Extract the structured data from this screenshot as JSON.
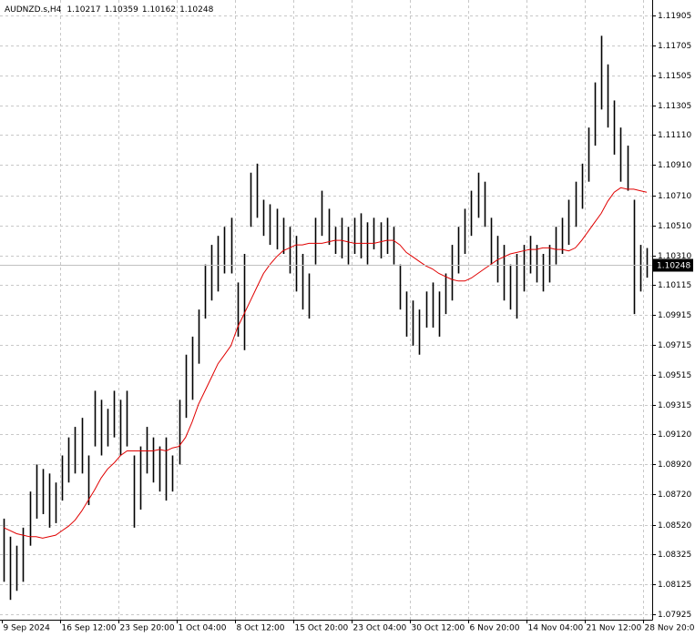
{
  "chart_data": {
    "type": "ohlc",
    "title": "AUDNZD.s,H4",
    "last_open": 1.10217,
    "last_close": 1.10248,
    "ylim": [
      1.07888,
      1.12008
    ],
    "yticks": [
      1.11905,
      1.11705,
      1.11505,
      1.11305,
      {
        "value": 1.1111,
        "label": "1.11110"
      },
      {
        "value": 1.1091,
        "label": "1.10910"
      },
      {
        "value": 1.1071,
        "label": "1.10710"
      },
      {
        "value": 1.1051,
        "label": "1.10510"
      },
      {
        "value": 1.1031,
        "label": "1.10310"
      },
      1.10115,
      1.09915,
      1.09715,
      1.09515,
      1.09315,
      {
        "value": 1.0912,
        "label": "1.09120"
      },
      {
        "value": 1.0892,
        "label": "1.08920"
      },
      {
        "value": 1.0872,
        "label": "1.08720"
      },
      {
        "value": 1.0852,
        "label": "1.08520"
      },
      1.08325,
      1.08125,
      1.07925
    ],
    "x_labels": [
      "9 Sep 2024",
      "16 Sep 12:00",
      "23 Sep 20:00",
      "1 Oct 04:00",
      "8 Oct 12:00",
      "15 Oct 20:00",
      "23 Oct 04:00",
      "30 Oct 12:00",
      "6 Nov 20:00",
      "14 Nov 04:00",
      "21 Nov 12:00",
      "28 Nov 20:00"
    ],
    "grid": true,
    "bar_color": "#000000",
    "ma_color": "#e00000",
    "price_line_color": "#c0c0c0",
    "high": [
      1.0856,
      1.0844,
      1.0838,
      1.085,
      1.0874,
      1.0892,
      1.0889,
      1.0886,
      1.088,
      1.0898,
      1.091,
      1.0917,
      1.0923,
      1.0898,
      1.0941,
      1.0935,
      1.0929,
      1.0941,
      1.0935,
      1.0941,
      1.0898,
      1.0904,
      1.0917,
      1.091,
      1.0904,
      1.091,
      1.0898,
      1.0935,
      1.0965,
      1.0977,
      1.0995,
      1.1025,
      1.1038,
      1.1044,
      1.105,
      1.1056,
      1.1013,
      1.1032,
      1.1086,
      1.1092,
      1.1068,
      1.1065,
      1.1062,
      1.1056,
      1.105,
      1.1044,
      1.1032,
      1.1019,
      1.1056,
      1.1074,
      1.1062,
      1.105,
      1.1056,
      1.105,
      1.1056,
      1.1059,
      1.1053,
      1.1056,
      1.1053,
      1.1056,
      1.105,
      1.1025,
      1.1007,
      1.1001,
      1.0995,
      1.1007,
      1.1013,
      1.1007,
      1.1019,
      1.1038,
      1.105,
      1.1062,
      1.1074,
      1.1086,
      1.108,
      1.1056,
      1.1044,
      1.1038,
      1.1025,
      1.1032,
      1.1038,
      1.1044,
      1.1038,
      1.1032,
      1.1038,
      1.105,
      1.1056,
      1.1068,
      1.108,
      1.1092,
      1.1116,
      1.1146,
      1.1177,
      1.1158,
      1.1134,
      1.1116,
      1.1104,
      1.1068,
      1.1038,
      1.10359
    ],
    "low": [
      1.0814,
      1.0802,
      1.0808,
      1.0814,
      1.0838,
      1.0856,
      1.0859,
      1.085,
      1.0853,
      1.0868,
      1.088,
      1.0886,
      1.0886,
      1.0865,
      1.0904,
      1.0898,
      1.0904,
      1.091,
      1.0898,
      1.0904,
      1.085,
      1.0862,
      1.0886,
      1.088,
      1.0874,
      1.0868,
      1.0874,
      1.0892,
      1.0923,
      1.0935,
      1.0959,
      1.0989,
      1.1001,
      1.1007,
      1.1019,
      1.1019,
      1.0977,
      1.0968,
      1.105,
      1.1056,
      1.1044,
      1.1038,
      1.1035,
      1.1032,
      1.1019,
      1.1007,
      1.0995,
      1.0989,
      1.1025,
      1.1044,
      1.1038,
      1.1032,
      1.1029,
      1.1025,
      1.1032,
      1.1029,
      1.1025,
      1.1035,
      1.1029,
      1.1032,
      1.1025,
      1.0995,
      1.0977,
      1.0971,
      1.0965,
      1.0983,
      1.0983,
      1.0977,
      1.0992,
      1.1001,
      1.1019,
      1.1032,
      1.1044,
      1.1056,
      1.105,
      1.1025,
      1.1013,
      1.1001,
      1.0995,
      1.0989,
      1.1007,
      1.1019,
      1.1013,
      1.1007,
      1.1013,
      1.1025,
      1.1032,
      1.1038,
      1.105,
      1.1062,
      1.108,
      1.1104,
      1.1128,
      1.1116,
      1.1098,
      1.108,
      1.1074,
      1.0992,
      1.1007,
      1.10162
    ],
    "ma": [
      1.085,
      1.0848,
      1.0846,
      1.0845,
      1.0844,
      1.0844,
      1.0843,
      1.0844,
      1.0845,
      1.0848,
      1.0851,
      1.0855,
      1.0861,
      1.0868,
      1.0875,
      1.0883,
      1.0889,
      1.0893,
      1.0898,
      1.0901,
      1.0901,
      1.0901,
      1.0901,
      1.0901,
      1.0902,
      1.0901,
      1.0903,
      1.0904,
      1.091,
      1.092,
      1.0932,
      1.0941,
      1.095,
      1.0959,
      1.0965,
      1.0971,
      1.0983,
      1.0992,
      1.1001,
      1.101,
      1.1019,
      1.1025,
      1.103,
      1.1034,
      1.1036,
      1.1038,
      1.1038,
      1.1039,
      1.1039,
      1.1039,
      1.104,
      1.1041,
      1.1041,
      1.104,
      1.1039,
      1.1039,
      1.1039,
      1.1039,
      1.104,
      1.1041,
      1.1041,
      1.1038,
      1.1033,
      1.103,
      1.1027,
      1.1024,
      1.1022,
      1.1019,
      1.1017,
      1.1015,
      1.1014,
      1.1014,
      1.1016,
      1.1019,
      1.1022,
      1.1025,
      1.1028,
      1.103,
      1.1032,
      1.1033,
      1.1034,
      1.1035,
      1.1035,
      1.1036,
      1.1036,
      1.1035,
      1.1035,
      1.1034,
      1.1036,
      1.1041,
      1.1047,
      1.1053,
      1.1059,
      1.1067,
      1.1073,
      1.1076,
      1.1075,
      1.1075,
      1.1074,
      1.1073
    ]
  }
}
